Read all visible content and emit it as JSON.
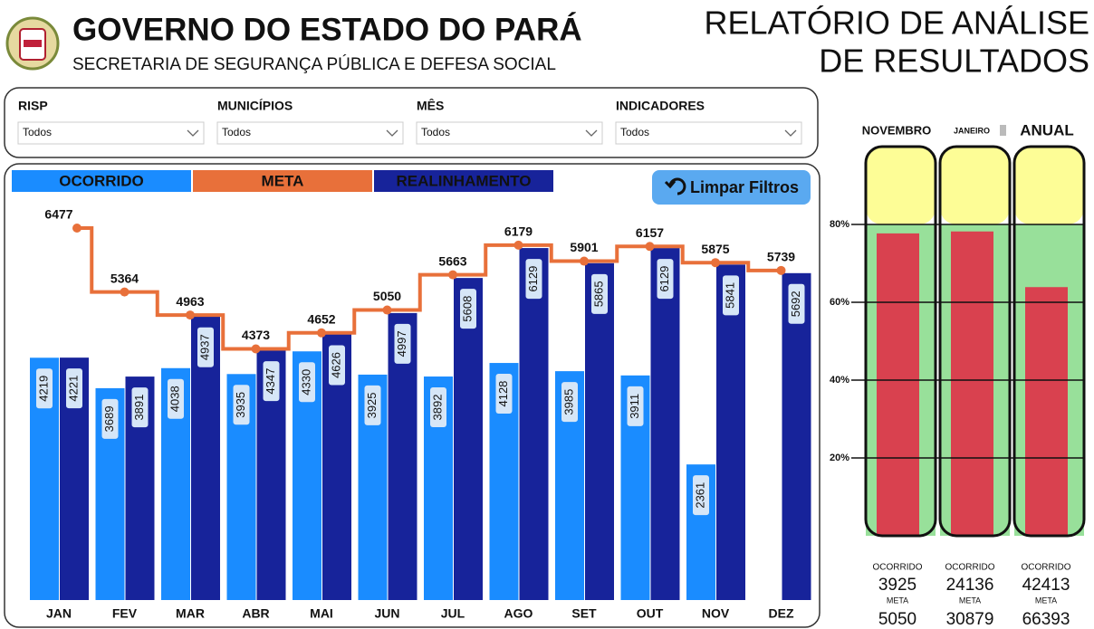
{
  "header": {
    "title": "GOVERNO DO ESTADO DO PARÁ",
    "subtitle": "SECRETARIA DE SEGURANÇA PÚBLICA E DEFESA SOCIAL",
    "report_title": [
      "RELATÓRIO DE ANÁLISE",
      "DE RESULTADOS"
    ]
  },
  "filters": [
    {
      "label": "RISP",
      "value": "Todos"
    },
    {
      "label": "MUNICÍPIOS",
      "value": "Todos"
    },
    {
      "label": "MÊS",
      "value": "Todos"
    },
    {
      "label": "INDICADORES",
      "value": "Todos"
    }
  ],
  "clear_button": "Limpar Filtros",
  "chart_data": [
    {
      "type": "bar",
      "categories": [
        "JAN",
        "FEV",
        "MAR",
        "ABR",
        "MAI",
        "JUN",
        "JUL",
        "AGO",
        "SET",
        "OUT",
        "NOV",
        "DEZ"
      ],
      "series": [
        {
          "name": "OCORRIDO",
          "color": "#1a8cff",
          "values": [
            4219,
            3689,
            4038,
            3935,
            4330,
            3925,
            3892,
            4128,
            3985,
            3911,
            2361,
            null
          ]
        },
        {
          "name": "META",
          "color": "#e8703a",
          "type": "line",
          "values": [
            6477,
            5364,
            4963,
            4373,
            4652,
            5050,
            5663,
            6179,
            5901,
            6157,
            5875,
            5739
          ]
        },
        {
          "name": "REALINHAMENTO",
          "color": "#17239a",
          "values": [
            4221,
            3891,
            4937,
            4347,
            4626,
            4997,
            5608,
            6129,
            5865,
            6129,
            5841,
            5692
          ]
        }
      ]
    },
    {
      "type": "bar",
      "categories": [
        "NOVEMBRO",
        "JANEIRO",
        "ANUAL"
      ],
      "values": [
        77.7,
        78.2,
        63.9
      ],
      "color": "#d9414f",
      "ylim": [
        0,
        100
      ],
      "yticks": [
        {
          "value": 20,
          "label": "20%"
        },
        {
          "value": 40,
          "label": "40%"
        },
        {
          "value": 60,
          "label": "60%"
        },
        {
          "value": 80,
          "label": "80%"
        }
      ],
      "grid": true,
      "threshold": {
        "value": 80,
        "above_color": "#fdfd96",
        "below_color": "#98e09a"
      }
    }
  ],
  "summary": [
    {
      "ocorrido_label": "OCORRIDO",
      "ocorrido": 3925,
      "meta_label": "META",
      "meta": 5050
    },
    {
      "ocorrido_label": "OCORRIDO",
      "ocorrido": 24136,
      "meta_label": "META",
      "meta": 30879
    },
    {
      "ocorrido_label": "OCORRIDO",
      "ocorrido": 42413,
      "meta_label": "META",
      "meta": 66393
    }
  ]
}
